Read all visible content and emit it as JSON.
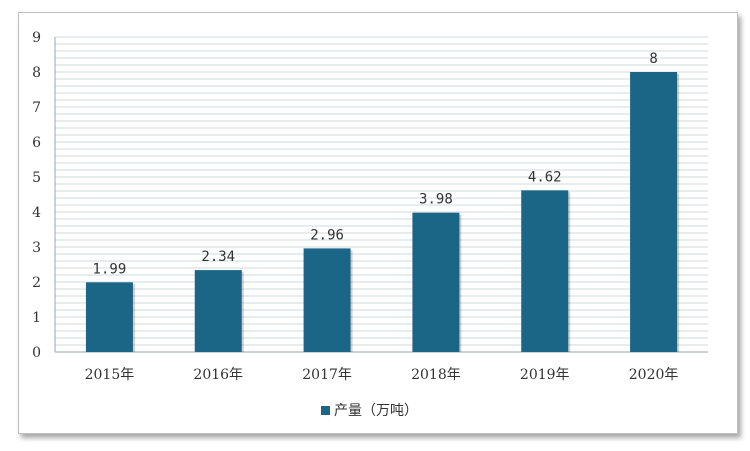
{
  "chart_data": {
    "type": "bar",
    "categories": [
      "2015年",
      "2016年",
      "2017年",
      "2018年",
      "2019年",
      "2020年"
    ],
    "series": [
      {
        "name": "产量（万吨）",
        "values": [
          1.99,
          2.34,
          2.96,
          3.98,
          4.62,
          8
        ]
      }
    ],
    "data_labels": [
      "1.99",
      "2.34",
      "2.96",
      "3.98",
      "4.62",
      "8"
    ],
    "y_ticks": [
      "0",
      "1",
      "2",
      "3",
      "4",
      "5",
      "6",
      "7",
      "8",
      "9"
    ],
    "ylim": [
      0,
      9
    ],
    "grid": true,
    "legend_position": "bottom",
    "colors": {
      "bar": "#1b6586",
      "grid": "#cfd8dc",
      "plot_background": "#ffffff"
    }
  }
}
